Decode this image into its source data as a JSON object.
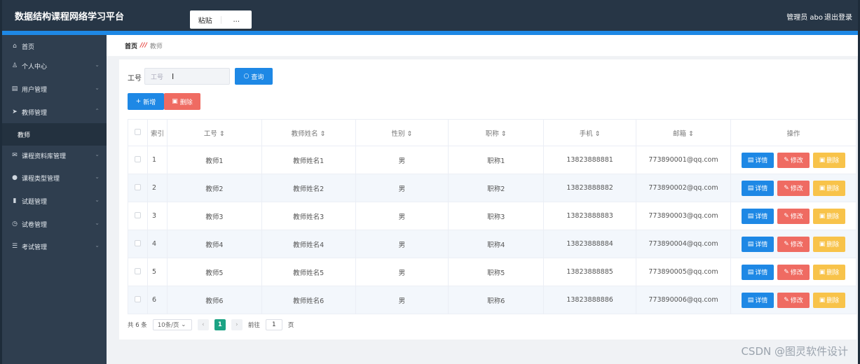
{
  "app": {
    "title": "数据结构课程网络学习平台",
    "paste_label": "粘贴",
    "more_label": "...",
    "admin": "管理员 abo",
    "logout": "退出登录"
  },
  "sidebar": {
    "items": [
      {
        "icon": "home-icon",
        "glyph": "⌂",
        "label": "首页",
        "arrow": ""
      },
      {
        "icon": "user-icon",
        "glyph": "♙",
        "label": "个人中心",
        "arrow": "⌄"
      },
      {
        "icon": "users-icon",
        "glyph": "▤",
        "label": "用户管理",
        "arrow": "⌄"
      },
      {
        "icon": "send-icon",
        "glyph": "➤",
        "label": "教师管理",
        "arrow": "⌃"
      },
      {
        "icon": "",
        "glyph": "",
        "label": "教师",
        "arrow": ""
      },
      {
        "icon": "mail-icon",
        "glyph": "✉",
        "label": "课程资料库管理",
        "arrow": "⌄"
      },
      {
        "icon": "location-icon",
        "glyph": "●",
        "label": "课程类型管理",
        "arrow": "⌄"
      },
      {
        "icon": "chart-icon",
        "glyph": "▮",
        "label": "试题管理",
        "arrow": "⌄"
      },
      {
        "icon": "power-icon",
        "glyph": "◷",
        "label": "试卷管理",
        "arrow": "⌄"
      },
      {
        "icon": "list-icon",
        "glyph": "☰",
        "label": "考试管理",
        "arrow": "⌄"
      }
    ]
  },
  "breadcrumb": {
    "home": "首页",
    "separator": "///",
    "current": "教师"
  },
  "search": {
    "label": "工号",
    "placeholder": "工号",
    "query_label": "查询"
  },
  "toolbar": {
    "add_label": "新增",
    "delete_label": "删除"
  },
  "table": {
    "headers": [
      "索引",
      "工号 ⇕",
      "教师姓名 ⇕",
      "性别 ⇕",
      "职称 ⇕",
      "手机 ⇕",
      "邮箱 ⇕",
      "操作"
    ],
    "rows": [
      [
        "1",
        "教师1",
        "教师姓名1",
        "男",
        "职称1",
        "13823888881",
        "773890001@qq.com"
      ],
      [
        "2",
        "教师2",
        "教师姓名2",
        "男",
        "职称2",
        "13823888882",
        "773890002@qq.com"
      ],
      [
        "3",
        "教师3",
        "教师姓名3",
        "男",
        "职称3",
        "13823888883",
        "773890003@qq.com"
      ],
      [
        "4",
        "教师4",
        "教师姓名4",
        "男",
        "职称4",
        "13823888884",
        "773890004@qq.com"
      ],
      [
        "5",
        "教师5",
        "教师姓名5",
        "男",
        "职称5",
        "13823888885",
        "773890005@qq.com"
      ],
      [
        "6",
        "教师6",
        "教师姓名6",
        "男",
        "职称6",
        "13823888886",
        "773890006@qq.com"
      ]
    ],
    "actions": {
      "detail": "详情",
      "edit": "修改",
      "remove": "删除"
    }
  },
  "pagination": {
    "total": "共 6 条",
    "page_size": "10条/页",
    "current_page": "1",
    "goto_label": "前往",
    "goto_value": "1",
    "page_unit": "页"
  },
  "watermark": "CSDN @图灵软件设计",
  "colors": {
    "primary": "#1e88e5",
    "danger": "#ef6b62",
    "warning": "#f8c34a",
    "active_page": "#1ba384",
    "sidebar": "#2f3e4f"
  }
}
